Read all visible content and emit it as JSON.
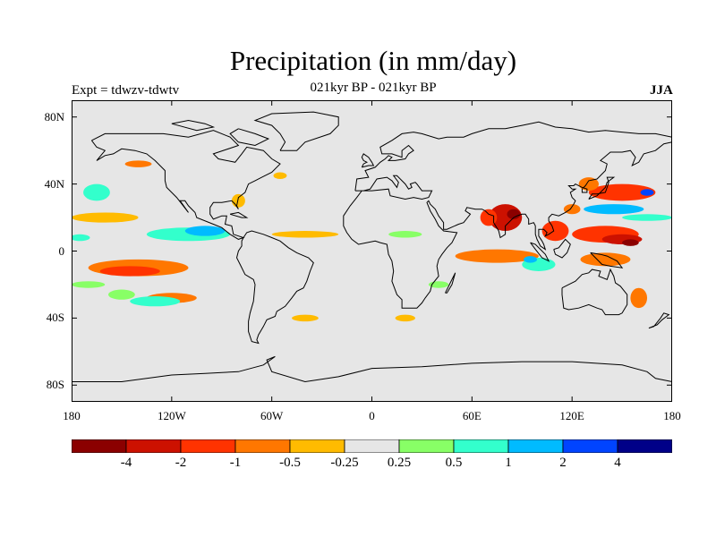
{
  "figure": {
    "title": "Precipitation (in mm/day)",
    "subtitle": "021kyr BP - 021kyr BP",
    "left_label": "Expt = tdwzv-tdwtv",
    "right_label": "JJA"
  },
  "colors": {
    "map_background": "#e6e6e6",
    "coastline": "#000000"
  },
  "chart_data": {
    "type": "heatmap",
    "projection": "cylindrical equidistant",
    "lon_range": [
      -180,
      180
    ],
    "lat_range": [
      -90,
      90
    ],
    "x_ticks": [
      {
        "value": -180,
        "label": "180"
      },
      {
        "value": -120,
        "label": "120W"
      },
      {
        "value": -60,
        "label": "60W"
      },
      {
        "value": 0,
        "label": "0"
      },
      {
        "value": 60,
        "label": "60E"
      },
      {
        "value": 120,
        "label": "120E"
      },
      {
        "value": 180,
        "label": "180"
      }
    ],
    "y_ticks": [
      {
        "value": 80,
        "label": "80N"
      },
      {
        "value": 40,
        "label": "40N"
      },
      {
        "value": 0,
        "label": "0"
      },
      {
        "value": -40,
        "label": "40S"
      },
      {
        "value": -80,
        "label": "80S"
      }
    ],
    "colorbar": {
      "colors": [
        "#8b0000",
        "#cc1100",
        "#ff3300",
        "#ff7700",
        "#ffbb00",
        "#e6e6e6",
        "#88ff66",
        "#33ffcc",
        "#00bbff",
        "#0044ff",
        "#000088"
      ],
      "labels": [
        "-4",
        "-2",
        "-1",
        "-0.5",
        "-0.25",
        "0.25",
        "0.5",
        "1",
        "2",
        "4"
      ]
    },
    "anomaly_regions": [
      {
        "lon": 80,
        "lat": 20,
        "rx": 10,
        "ry": 8,
        "level": -2
      },
      {
        "lon": 85,
        "lat": 22,
        "rx": 4,
        "ry": 3,
        "level": -4
      },
      {
        "lon": 70,
        "lat": 20,
        "rx": 5,
        "ry": 5,
        "level": -1
      },
      {
        "lon": 110,
        "lat": 12,
        "rx": 8,
        "ry": 6,
        "level": -1
      },
      {
        "lon": 140,
        "lat": 10,
        "rx": 20,
        "ry": 5,
        "level": -1
      },
      {
        "lon": 150,
        "lat": 7,
        "rx": 12,
        "ry": 3,
        "level": -2
      },
      {
        "lon": 155,
        "lat": 5,
        "rx": 5,
        "ry": 2,
        "level": -4
      },
      {
        "lon": 75,
        "lat": -3,
        "rx": 25,
        "ry": 4,
        "level": -0.5
      },
      {
        "lon": 140,
        "lat": -5,
        "rx": 15,
        "ry": 4,
        "level": -0.5
      },
      {
        "lon": 150,
        "lat": 35,
        "rx": 20,
        "ry": 5,
        "level": -1
      },
      {
        "lon": 160,
        "lat": -28,
        "rx": 5,
        "ry": 6,
        "level": -0.5
      },
      {
        "lon": -140,
        "lat": -10,
        "rx": 30,
        "ry": 5,
        "level": -0.5
      },
      {
        "lon": -145,
        "lat": -12,
        "rx": 18,
        "ry": 3,
        "level": -1
      },
      {
        "lon": -120,
        "lat": -28,
        "rx": 15,
        "ry": 3,
        "level": -0.5
      },
      {
        "lon": -160,
        "lat": 20,
        "rx": 20,
        "ry": 3,
        "level": -0.25
      },
      {
        "lon": -140,
        "lat": 52,
        "rx": 8,
        "ry": 2,
        "level": -0.5
      },
      {
        "lon": -110,
        "lat": 10,
        "rx": 25,
        "ry": 4,
        "level": 0.5
      },
      {
        "lon": -100,
        "lat": 12,
        "rx": 12,
        "ry": 3,
        "level": 1
      },
      {
        "lon": -130,
        "lat": -30,
        "rx": 15,
        "ry": 3,
        "level": 0.5
      },
      {
        "lon": -150,
        "lat": -26,
        "rx": 8,
        "ry": 3,
        "level": 0.25
      },
      {
        "lon": -165,
        "lat": 35,
        "rx": 8,
        "ry": 5,
        "level": 0.5
      },
      {
        "lon": -175,
        "lat": 8,
        "rx": 6,
        "ry": 2,
        "level": 0.5
      },
      {
        "lon": 100,
        "lat": -8,
        "rx": 10,
        "ry": 4,
        "level": 0.5
      },
      {
        "lon": 95,
        "lat": -5,
        "rx": 4,
        "ry": 2,
        "level": 1
      },
      {
        "lon": 145,
        "lat": 25,
        "rx": 18,
        "ry": 3,
        "level": 1
      },
      {
        "lon": 165,
        "lat": 20,
        "rx": 15,
        "ry": 2,
        "level": 0.5
      },
      {
        "lon": 165,
        "lat": 35,
        "rx": 4,
        "ry": 2,
        "level": 2
      },
      {
        "lon": 120,
        "lat": 25,
        "rx": 5,
        "ry": 3,
        "level": -0.5
      },
      {
        "lon": 130,
        "lat": 40,
        "rx": 6,
        "ry": 4,
        "level": -0.5
      },
      {
        "lon": -55,
        "lat": 45,
        "rx": 4,
        "ry": 2,
        "level": -0.25
      },
      {
        "lon": -80,
        "lat": 30,
        "rx": 4,
        "ry": 4,
        "level": -0.25
      },
      {
        "lon": -40,
        "lat": 10,
        "rx": 20,
        "ry": 2,
        "level": -0.25
      },
      {
        "lon": -40,
        "lat": -40,
        "rx": 8,
        "ry": 2,
        "level": -0.25
      },
      {
        "lon": 20,
        "lat": 10,
        "rx": 10,
        "ry": 2,
        "level": 0.25
      },
      {
        "lon": 40,
        "lat": -20,
        "rx": 6,
        "ry": 2,
        "level": 0.25
      },
      {
        "lon": 20,
        "lat": -40,
        "rx": 6,
        "ry": 2,
        "level": -0.25
      },
      {
        "lon": -170,
        "lat": -20,
        "rx": 10,
        "ry": 2,
        "level": 0.25
      }
    ]
  }
}
